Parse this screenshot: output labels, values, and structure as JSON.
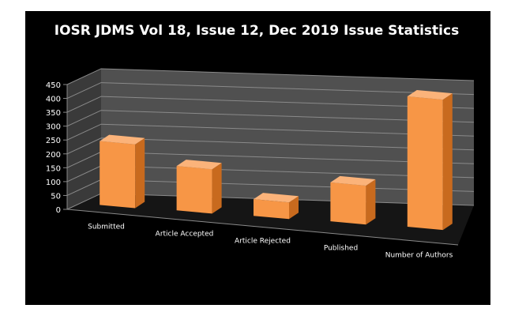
{
  "chart_data": {
    "type": "bar",
    "title": "IOSR JDMS Vol 18, Issue 12, Dec 2019 Issue Statistics",
    "categories": [
      "Submitted",
      "Article Accepted",
      "Article Rejected",
      "Published",
      "Number of Authors"
    ],
    "values": [
      230,
      160,
      60,
      140,
      470
    ],
    "ylim": [
      0,
      450
    ],
    "yticks": [
      0,
      50,
      100,
      150,
      200,
      250,
      300,
      350,
      400,
      450
    ],
    "xlabel": "",
    "ylabel": "",
    "grid": true,
    "legend": "none",
    "style": "3d-column",
    "colors": {
      "background": "#000000",
      "bar_front": "#F79646",
      "bar_side": "#C86A1E",
      "bar_top": "#FBB37A",
      "wall": "#505050",
      "floor": "#151515",
      "grid": "#8a8a8a",
      "text": "#ffffff"
    }
  }
}
